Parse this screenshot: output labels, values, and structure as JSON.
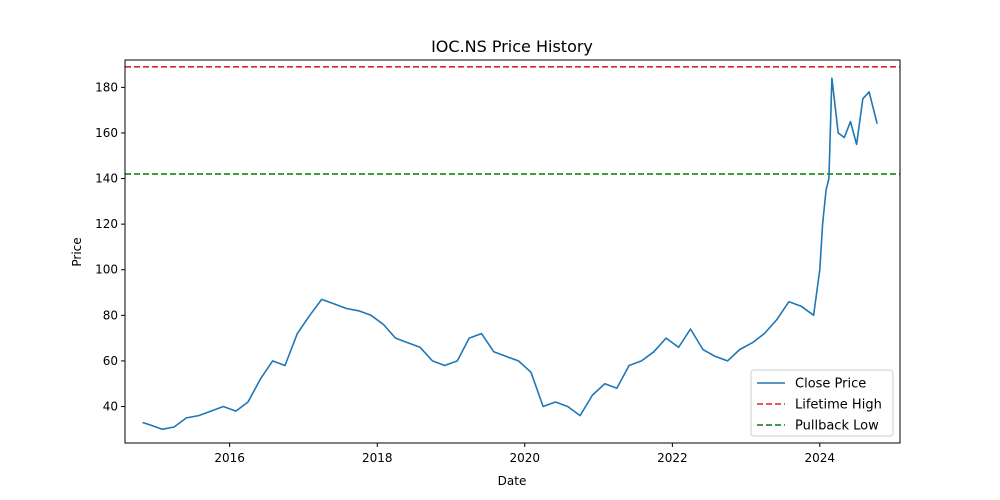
{
  "chart_data": {
    "type": "line",
    "title": "IOC.NS Price History",
    "xlabel": "Date",
    "ylabel": "Price",
    "xlim": [
      "2014-08-01",
      "2025-02-01"
    ],
    "ylim": [
      24,
      192
    ],
    "x_ticks": [
      "2016-01-01",
      "2018-01-01",
      "2020-01-01",
      "2022-01-01",
      "2024-01-01"
    ],
    "x_tick_labels": [
      "2016",
      "2018",
      "2020",
      "2022",
      "2024"
    ],
    "y_ticks": [
      40,
      60,
      80,
      100,
      120,
      140,
      160,
      180
    ],
    "y_tick_labels": [
      "40",
      "60",
      "80",
      "100",
      "120",
      "140",
      "160",
      "180"
    ],
    "grid": false,
    "legend": {
      "position": "bottom-right"
    },
    "series": [
      {
        "name": "Close Price",
        "color": "#1f77b4",
        "line_style": "solid",
        "x": [
          "2014-10-27",
          "2014-12-01",
          "2015-02-01",
          "2015-04-01",
          "2015-06-01",
          "2015-08-01",
          "2015-10-01",
          "2015-12-01",
          "2016-02-01",
          "2016-04-01",
          "2016-06-01",
          "2016-08-01",
          "2016-10-01",
          "2016-12-01",
          "2017-02-01",
          "2017-04-01",
          "2017-06-01",
          "2017-08-01",
          "2017-10-01",
          "2017-12-01",
          "2018-02-01",
          "2018-04-01",
          "2018-06-01",
          "2018-08-01",
          "2018-10-01",
          "2018-12-01",
          "2019-02-01",
          "2019-04-01",
          "2019-06-01",
          "2019-08-01",
          "2019-10-01",
          "2019-12-01",
          "2020-02-01",
          "2020-04-01",
          "2020-06-01",
          "2020-08-01",
          "2020-10-01",
          "2020-12-01",
          "2021-02-01",
          "2021-04-01",
          "2021-06-01",
          "2021-08-01",
          "2021-10-01",
          "2021-12-01",
          "2022-02-01",
          "2022-04-01",
          "2022-06-01",
          "2022-08-01",
          "2022-10-01",
          "2022-12-01",
          "2023-02-01",
          "2023-04-01",
          "2023-06-01",
          "2023-08-01",
          "2023-10-01",
          "2023-12-01",
          "2024-01-01",
          "2024-01-15",
          "2024-02-01",
          "2024-02-15",
          "2024-03-01",
          "2024-04-01",
          "2024-05-01",
          "2024-06-01",
          "2024-07-01",
          "2024-08-01",
          "2024-09-01",
          "2024-10-11"
        ],
        "y": [
          33,
          32,
          30,
          31,
          35,
          36,
          38,
          40,
          38,
          42,
          52,
          60,
          58,
          72,
          80,
          87,
          85,
          83,
          82,
          80,
          76,
          70,
          68,
          66,
          60,
          58,
          60,
          70,
          72,
          64,
          62,
          60,
          55,
          40,
          42,
          40,
          36,
          45,
          50,
          48,
          58,
          60,
          64,
          70,
          66,
          74,
          65,
          62,
          60,
          65,
          68,
          72,
          78,
          86,
          84,
          80,
          100,
          120,
          135,
          140,
          184,
          160,
          158,
          165,
          155,
          175,
          178,
          164
        ]
      }
    ],
    "reference_lines": [
      {
        "name": "Lifetime High",
        "y": 189,
        "color": "#d62728",
        "line_style": "dashed"
      },
      {
        "name": "Pullback Low",
        "y": 142,
        "color": "#008000",
        "line_style": "dashed"
      }
    ]
  }
}
